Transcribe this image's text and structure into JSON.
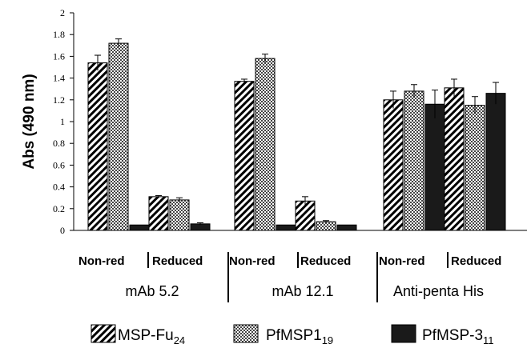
{
  "chart_data": {
    "type": "bar",
    "ylabel": "Abs (490 nm)",
    "ylim": [
      0,
      2
    ],
    "yticks": [
      "0",
      "0.2",
      "0.4",
      "0.6",
      "0.8",
      "1",
      "1.2",
      "1.4",
      "1.6",
      "1.8",
      "2"
    ],
    "grid": false,
    "legend_position": "bottom",
    "colors": {
      "msp_fu24": "#000000",
      "pfmsp1_19": "#7f7f7f",
      "pfmsp3_11": "#1a1a1a"
    },
    "groups": [
      {
        "label": "mAb 5.2",
        "conditions": [
          "Non-red",
          "Reduced"
        ]
      },
      {
        "label": "mAb 12.1",
        "conditions": [
          "Non-red",
          "Reduced"
        ]
      },
      {
        "label": "Anti-penta His",
        "conditions": [
          "Non-red",
          "Reduced"
        ]
      }
    ],
    "categories": [
      "mAb 5.2 Non-red",
      "mAb 5.2 Reduced",
      "mAb 12.1 Non-red",
      "mAb 12.1 Reduced",
      "Anti-penta His Non-red",
      "Anti-penta His Reduced"
    ],
    "series": [
      {
        "key": "msp_fu24",
        "name": "MSP-Fu",
        "name_sub": "24",
        "values": [
          1.54,
          0.31,
          1.37,
          0.27,
          1.2,
          1.31
        ],
        "errors": [
          0.07,
          0.01,
          0.02,
          0.04,
          0.08,
          0.08
        ]
      },
      {
        "key": "pfmsp1_19",
        "name": "PfMSP1",
        "name_sub": "19",
        "values": [
          1.72,
          0.28,
          1.58,
          0.08,
          1.28,
          1.15
        ],
        "errors": [
          0.04,
          0.02,
          0.04,
          0.01,
          0.06,
          0.08
        ]
      },
      {
        "key": "pfmsp3_11",
        "name": "PfMSP-3",
        "name_sub": "11",
        "values": [
          0.05,
          0.06,
          0.05,
          0.05,
          1.16,
          1.26
        ],
        "errors": [
          0.0,
          0.01,
          0.0,
          0.0,
          0.13,
          0.1
        ]
      }
    ]
  }
}
